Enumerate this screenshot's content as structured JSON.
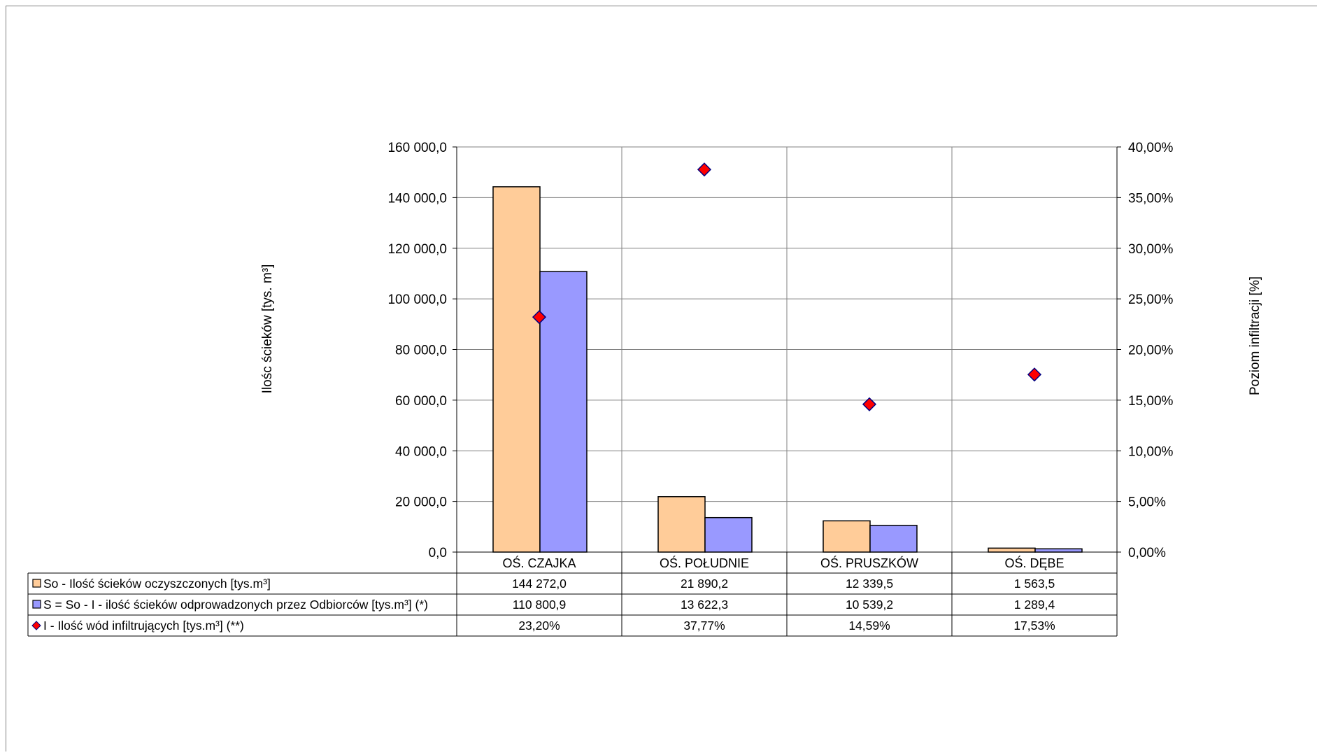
{
  "colors": {
    "series_so": "#FFCC99",
    "series_s": "#9999FF",
    "series_i": "#FF0000",
    "series_i_edge": "#000080",
    "grid": "#808080"
  },
  "chart_data": {
    "type": "bar",
    "categories": [
      "OŚ. CZAJKA",
      "OŚ. POŁUDNIE",
      "OŚ. PRUSZKÓW",
      "OŚ. DĘBE"
    ],
    "ylabel": "Ilośc ścieków [tys. m³]",
    "y2label": "Poziom infiltracji [%]",
    "ylim": [
      0,
      160000
    ],
    "y2lim": [
      0,
      0.4
    ],
    "yticks": [
      "0,0",
      "20 000,0",
      "40 000,0",
      "60 000,0",
      "80 000,0",
      "100 000,0",
      "120 000,0",
      "140 000,0",
      "160 000,0"
    ],
    "y2ticks": [
      "0,00%",
      "5,00%",
      "10,00%",
      "15,00%",
      "20,00%",
      "25,00%",
      "30,00%",
      "35,00%",
      "40,00%"
    ],
    "grid": true,
    "legend": "data-table",
    "series": [
      {
        "name": "So - Ilość ścieków oczyszczonych [tys.m³]",
        "kind": "bar",
        "axis": "left",
        "values": [
          144272.0,
          21890.2,
          12339.5,
          1563.5
        ],
        "labels": [
          "144 272,0",
          "21 890,2",
          "12 339,5",
          "1 563,5"
        ]
      },
      {
        "name": "S = So - I - ilość ścieków odprowadzonych przez Odbiorców [tys.m³] (*)",
        "kind": "bar",
        "axis": "left",
        "values": [
          110800.9,
          13622.3,
          10539.2,
          1289.4
        ],
        "labels": [
          "110 800,9",
          "13 622,3",
          "10 539,2",
          "1 289,4"
        ]
      },
      {
        "name": "I - Ilość wód infiltrujących [tys.m³] (**)",
        "kind": "scatter",
        "axis": "right",
        "values": [
          0.232,
          0.3777,
          0.1459,
          0.1753
        ],
        "labels": [
          "23,20%",
          "37,77%",
          "14,59%",
          "17,53%"
        ]
      }
    ]
  }
}
